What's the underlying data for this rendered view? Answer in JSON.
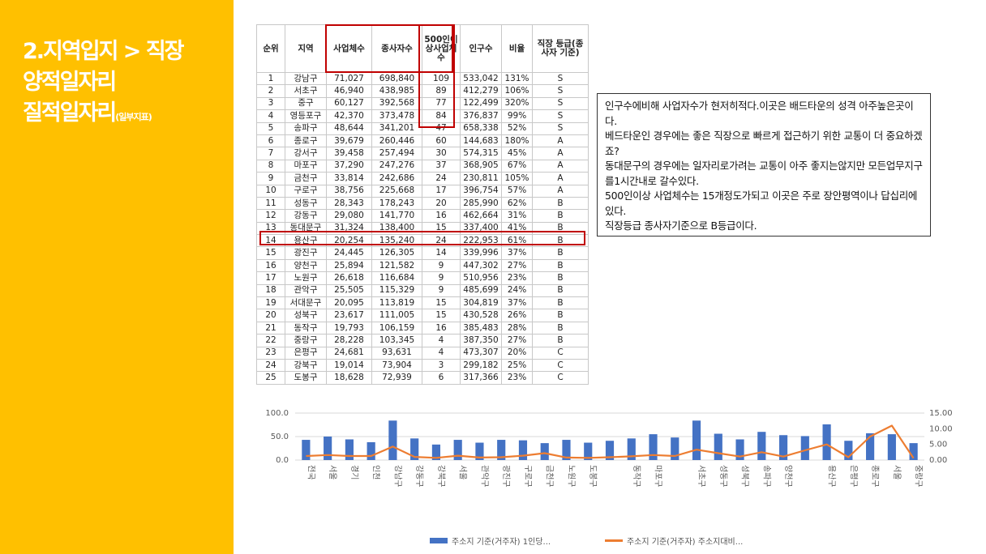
{
  "sidebar": {
    "title_line1": "2.지역입지 > 직장",
    "title_line2": "양적일자리",
    "title_line3": "질적일자리",
    "title_line3_suffix": "(일부지표)"
  },
  "table": {
    "headers": {
      "rank": "순위",
      "area": "지역",
      "businesses": "사업체수",
      "employees": "종사자수",
      "large_biz": "500인이상사업체수",
      "population": "인구수",
      "ratio": "비율",
      "grade": "직장 등급(종사자 기준)"
    },
    "rows": [
      [
        "1",
        "강남구",
        "71,027",
        "698,840",
        "109",
        "533,042",
        "131%",
        "S"
      ],
      [
        "2",
        "서초구",
        "46,940",
        "438,985",
        "89",
        "412,279",
        "106%",
        "S"
      ],
      [
        "3",
        "중구",
        "60,127",
        "392,568",
        "77",
        "122,499",
        "320%",
        "S"
      ],
      [
        "4",
        "영등포구",
        "42,370",
        "373,478",
        "84",
        "376,837",
        "99%",
        "S"
      ],
      [
        "5",
        "송파구",
        "48,644",
        "341,201",
        "47",
        "658,338",
        "52%",
        "S"
      ],
      [
        "6",
        "종로구",
        "39,679",
        "260,446",
        "60",
        "144,683",
        "180%",
        "A"
      ],
      [
        "7",
        "강서구",
        "39,458",
        "257,494",
        "30",
        "574,315",
        "45%",
        "A"
      ],
      [
        "8",
        "마포구",
        "37,290",
        "247,276",
        "37",
        "368,905",
        "67%",
        "A"
      ],
      [
        "9",
        "금천구",
        "33,814",
        "242,686",
        "24",
        "230,811",
        "105%",
        "A"
      ],
      [
        "10",
        "구로구",
        "38,756",
        "225,668",
        "17",
        "396,754",
        "57%",
        "A"
      ],
      [
        "11",
        "성동구",
        "28,343",
        "178,243",
        "20",
        "285,990",
        "62%",
        "B"
      ],
      [
        "12",
        "강동구",
        "29,080",
        "141,770",
        "16",
        "462,664",
        "31%",
        "B"
      ],
      [
        "13",
        "동대문구",
        "31,324",
        "138,400",
        "15",
        "337,400",
        "41%",
        "B"
      ],
      [
        "14",
        "용산구",
        "20,254",
        "135,240",
        "24",
        "222,953",
        "61%",
        "B"
      ],
      [
        "15",
        "광진구",
        "24,445",
        "126,305",
        "14",
        "339,996",
        "37%",
        "B"
      ],
      [
        "16",
        "양천구",
        "25,894",
        "121,582",
        "9",
        "447,302",
        "27%",
        "B"
      ],
      [
        "17",
        "노원구",
        "26,618",
        "116,684",
        "9",
        "510,956",
        "23%",
        "B"
      ],
      [
        "18",
        "관악구",
        "25,505",
        "115,329",
        "9",
        "485,699",
        "24%",
        "B"
      ],
      [
        "19",
        "서대문구",
        "20,095",
        "113,819",
        "15",
        "304,819",
        "37%",
        "B"
      ],
      [
        "20",
        "성북구",
        "23,617",
        "111,005",
        "15",
        "430,528",
        "26%",
        "B"
      ],
      [
        "21",
        "동작구",
        "19,793",
        "106,159",
        "16",
        "385,483",
        "28%",
        "B"
      ],
      [
        "22",
        "중랑구",
        "28,228",
        "103,345",
        "4",
        "387,350",
        "27%",
        "B"
      ],
      [
        "23",
        "은평구",
        "24,681",
        "93,631",
        "4",
        "473,307",
        "20%",
        "C"
      ],
      [
        "24",
        "강북구",
        "19,014",
        "73,904",
        "3",
        "299,182",
        "25%",
        "C"
      ],
      [
        "25",
        "도봉구",
        "18,628",
        "72,939",
        "6",
        "317,366",
        "23%",
        "C"
      ]
    ]
  },
  "note": {
    "lines": [
      "인구수에비해  사업자수가 현저히적다.이곳은 배드타운의 성격 아주높은곳이다.",
      "베드타운인 경우에는 좋은 직장으로 빠르게 접근하기 위한 교통이 더 중요하겠죠?",
      "동대문구의 경우에는 일자리로가려는 교통이 아주 좋지는않지만 모든업무지구를1시간내로 갈수있다.",
      "500인이상 사업체수는 15개정도가되고 이곳은 주로 장안평역이나 답십리에 있다.",
      "직장등급 종사자기준으로 B등급이다."
    ]
  },
  "chart_data": {
    "type": "bar",
    "categories": [
      "전국",
      "서울",
      "경기",
      "인천",
      "강남구",
      "강동구",
      "강북구",
      "서울",
      "관악구",
      "광진구",
      "구로구",
      "금천구",
      "노원구",
      "도봉구",
      "",
      "동작구",
      "마포구",
      "",
      "서초구",
      "성동구",
      "성북구",
      "송파구",
      "양천구",
      "",
      "용산구",
      "은평구",
      "종로구",
      "서울",
      "중랑구"
    ],
    "series": [
      {
        "name": "주소지 기준(거주자) 1인당...",
        "axis": "left",
        "type": "bar",
        "color": "#4472C4",
        "values": [
          43,
          50,
          44,
          38,
          84,
          46,
          33,
          43,
          37,
          43,
          42,
          36,
          43,
          37,
          41,
          46,
          55,
          48,
          84,
          56,
          44,
          60,
          53,
          51,
          76,
          41,
          57,
          55,
          36
        ]
      },
      {
        "name": "주소지 기준(거주자) 주소지대비...",
        "axis": "right",
        "type": "line",
        "color": "#ED7D31",
        "values": [
          1.3,
          1.6,
          1.3,
          1.3,
          4.3,
          1.0,
          0.7,
          1.4,
          0.8,
          0.9,
          1.4,
          2.2,
          0.8,
          0.7,
          0.9,
          1.2,
          1.6,
          1.3,
          3.3,
          2.2,
          1.1,
          2.5,
          1.1,
          3.1,
          5.0,
          0.9,
          7.5,
          11.0,
          0.6
        ]
      }
    ],
    "left_axis": {
      "min": 0,
      "max": 100,
      "ticks": [
        "0.0",
        "50.0",
        "100.0"
      ]
    },
    "right_axis": {
      "min": 0,
      "max": 15,
      "ticks": [
        "0.00",
        "5.00",
        "10.00",
        "15.00"
      ]
    },
    "gridlines": true,
    "legend_position": "bottom"
  }
}
